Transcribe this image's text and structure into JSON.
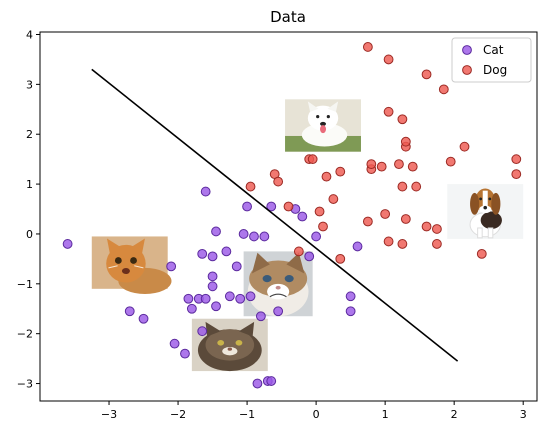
{
  "chart_data": {
    "type": "scatter",
    "title": "Data",
    "xlabel": "",
    "ylabel": "",
    "xlim": [
      -4.0,
      3.2
    ],
    "ylim": [
      -3.35,
      4.05
    ],
    "x_ticks": [
      -3,
      -2,
      -1,
      0,
      1,
      2,
      3
    ],
    "y_ticks": [
      -3,
      -2,
      -1,
      0,
      1,
      2,
      3,
      4
    ],
    "grid": false,
    "legend_position": "top-right",
    "series": [
      {
        "name": "Cat",
        "color": "#9b59e6",
        "edge": "#5b2a9e",
        "points": [
          [
            -3.6,
            -0.2
          ],
          [
            -2.7,
            -1.55
          ],
          [
            -2.5,
            -1.7
          ],
          [
            -2.1,
            -0.65
          ],
          [
            -2.05,
            -2.2
          ],
          [
            -1.9,
            -2.4
          ],
          [
            -1.85,
            -1.3
          ],
          [
            -1.8,
            -1.5
          ],
          [
            -1.7,
            -1.3
          ],
          [
            -1.65,
            -1.95
          ],
          [
            -1.6,
            -1.3
          ],
          [
            -1.65,
            -0.4
          ],
          [
            -1.6,
            0.85
          ],
          [
            -1.5,
            -0.45
          ],
          [
            -1.5,
            -0.85
          ],
          [
            -1.5,
            -1.05
          ],
          [
            -1.45,
            0.05
          ],
          [
            -1.45,
            -1.45
          ],
          [
            -1.3,
            -0.35
          ],
          [
            -1.25,
            -1.25
          ],
          [
            -1.15,
            -0.65
          ],
          [
            -1.1,
            -1.3
          ],
          [
            -1.05,
            0.0
          ],
          [
            -1.0,
            0.55
          ],
          [
            -0.95,
            -1.25
          ],
          [
            -0.9,
            -0.05
          ],
          [
            -0.85,
            -3.0
          ],
          [
            -0.8,
            -1.65
          ],
          [
            -0.75,
            -0.05
          ],
          [
            -0.7,
            -2.95
          ],
          [
            -0.65,
            -2.95
          ],
          [
            -0.65,
            0.55
          ],
          [
            -0.55,
            -1.55
          ],
          [
            -0.3,
            0.5
          ],
          [
            -0.2,
            0.35
          ],
          [
            -0.1,
            -0.45
          ],
          [
            0.0,
            -0.05
          ],
          [
            0.5,
            -1.25
          ],
          [
            0.5,
            -1.55
          ],
          [
            0.6,
            -0.25
          ]
        ]
      },
      {
        "name": "Dog",
        "color": "#ee5a52",
        "edge": "#9c2a24",
        "points": [
          [
            -0.95,
            0.95
          ],
          [
            -0.6,
            1.2
          ],
          [
            -0.55,
            1.05
          ],
          [
            -0.4,
            0.55
          ],
          [
            -0.25,
            -0.35
          ],
          [
            -0.1,
            1.5
          ],
          [
            -0.05,
            1.5
          ],
          [
            0.05,
            0.45
          ],
          [
            0.1,
            0.15
          ],
          [
            0.15,
            1.15
          ],
          [
            0.25,
            0.7
          ],
          [
            0.35,
            1.25
          ],
          [
            0.35,
            -0.5
          ],
          [
            0.75,
            3.75
          ],
          [
            0.75,
            0.25
          ],
          [
            0.8,
            1.3
          ],
          [
            0.8,
            1.4
          ],
          [
            0.95,
            1.35
          ],
          [
            1.0,
            0.4
          ],
          [
            1.05,
            2.45
          ],
          [
            1.05,
            3.5
          ],
          [
            1.2,
            1.4
          ],
          [
            1.25,
            0.95
          ],
          [
            1.25,
            2.3
          ],
          [
            1.3,
            1.75
          ],
          [
            1.3,
            1.85
          ],
          [
            1.3,
            0.3
          ],
          [
            1.4,
            1.35
          ],
          [
            1.45,
            0.95
          ],
          [
            1.25,
            -0.2
          ],
          [
            1.6,
            3.2
          ],
          [
            1.6,
            0.15
          ],
          [
            1.75,
            -0.2
          ],
          [
            1.75,
            0.1
          ],
          [
            1.85,
            2.9
          ],
          [
            1.95,
            1.45
          ],
          [
            2.15,
            1.75
          ],
          [
            2.4,
            -0.4
          ],
          [
            2.9,
            1.5
          ],
          [
            2.9,
            1.2
          ],
          [
            1.05,
            -0.15
          ]
        ]
      }
    ],
    "line": {
      "color": "#000000",
      "points": [
        [
          -3.25,
          3.3
        ],
        [
          2.05,
          -2.55
        ]
      ]
    },
    "images": [
      {
        "kind": "dog-white",
        "x": [
          -0.45,
          0.65
        ],
        "y": [
          1.65,
          2.7
        ]
      },
      {
        "kind": "dog-beagle",
        "x": [
          1.9,
          3.0
        ],
        "y": [
          -0.1,
          1.0
        ]
      },
      {
        "kind": "cat-orange",
        "x": [
          -3.25,
          -2.15
        ],
        "y": [
          -1.1,
          -0.05
        ]
      },
      {
        "kind": "cat-grumpy",
        "x": [
          -1.05,
          -0.05
        ],
        "y": [
          -1.65,
          -0.35
        ]
      },
      {
        "kind": "cat-tabby",
        "x": [
          -1.8,
          -0.7
        ],
        "y": [
          -2.75,
          -1.7
        ]
      }
    ]
  }
}
